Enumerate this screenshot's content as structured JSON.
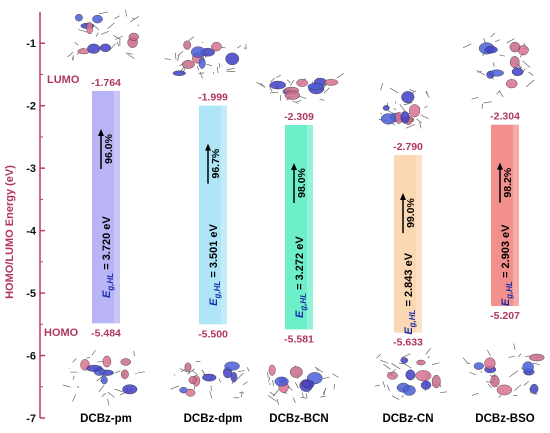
{
  "chart_data": {
    "type": "bar",
    "ylabel": "HOMO/LUMO Energy (eV)",
    "ylim": [
      -7,
      -0.5
    ],
    "yticks": [
      -1,
      -2,
      -3,
      -4,
      -5,
      -6,
      -7
    ],
    "tick_labels": [
      "-1",
      "-2",
      "-3",
      "-4",
      "-5",
      "-6",
      "-7"
    ],
    "lumo_label": "LUMO",
    "homo_label": "HOMO",
    "gap_prefix": "E",
    "gap_subscript": "g,HL",
    "categories": [
      "DCBz-pm",
      "DCBz-dpm",
      "DCBz-BCN",
      "DCBz-CN",
      "DCBz-BSO"
    ],
    "series": [
      {
        "name": "DCBz-pm",
        "lumo": -1.764,
        "homo": -5.484,
        "lumo_text": "-1.764",
        "homo_text": "-5.484",
        "gap_text": " = 3.720 eV",
        "percent_text": "96.0%",
        "color": "#b9b4f5"
      },
      {
        "name": "DCBz-dpm",
        "lumo": -1.999,
        "homo": -5.5,
        "lumo_text": "-1.999",
        "homo_text": "-5.500",
        "gap_text": " = 3.501 eV",
        "percent_text": "96.7%",
        "color": "#aee6f7"
      },
      {
        "name": "DCBz-BCN",
        "lumo": -2.309,
        "homo": -5.581,
        "lumo_text": "-2.309",
        "homo_text": "-5.581",
        "gap_text": " = 3.272 eV",
        "percent_text": "98.0%",
        "color": "#6df0c9"
      },
      {
        "name": "DCBz-CN",
        "lumo": -2.79,
        "homo": -5.633,
        "lumo_text": "-2.790",
        "homo_text": "-5.633",
        "gap_text": " = 2.843 eV",
        "percent_text": "99.0%",
        "color": "#fad8b4"
      },
      {
        "name": "DCBz-BSO",
        "lumo": -2.304,
        "homo": -5.207,
        "lumo_text": "-2.304",
        "homo_text": "-5.207",
        "gap_text": " = 2.903 eV",
        "percent_text": "98.2%",
        "color": "#f2908d"
      }
    ]
  }
}
